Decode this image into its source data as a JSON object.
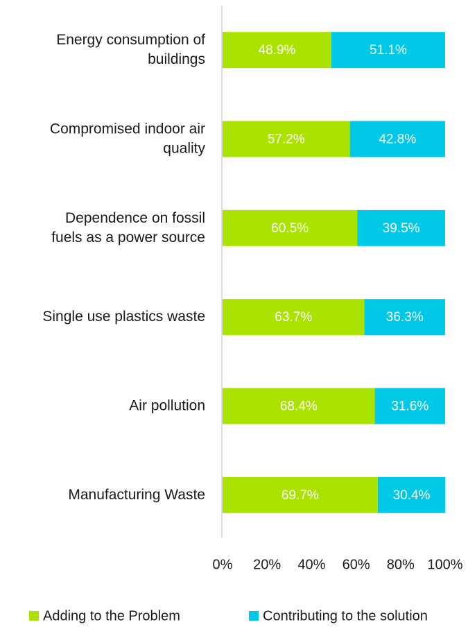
{
  "chart_data": {
    "type": "stacked_barh",
    "categories": [
      "Energy consumption of\nbuildings",
      "Compromised indoor air\nquality",
      "Dependence on fossil\nfuels as a power source",
      "Single use plastics waste",
      "Air pollution",
      "Manufacturing Waste"
    ],
    "series": [
      {
        "name": "Adding to the Problem",
        "color": "#abe300",
        "values": [
          48.9,
          57.2,
          60.5,
          63.7,
          68.4,
          69.7
        ],
        "value_labels": [
          "48.9%",
          "57.2%",
          "60.5%",
          "63.7%",
          "68.4%",
          "69.7%"
        ]
      },
      {
        "name": "Contributing to the solution",
        "color": "#00c9e8",
        "values": [
          51.1,
          42.8,
          39.5,
          36.3,
          31.6,
          30.4
        ],
        "value_labels": [
          "51.1%",
          "42.8%",
          "39.5%",
          "36.3%",
          "31.6%",
          "30.4%"
        ]
      }
    ],
    "xlim": [
      0,
      100
    ],
    "xticks": [
      {
        "value": 0,
        "label": "0%"
      },
      {
        "value": 20,
        "label": "20%"
      },
      {
        "value": 40,
        "label": "40%"
      },
      {
        "value": 60,
        "label": "60%"
      },
      {
        "value": 80,
        "label": "80%"
      },
      {
        "value": 100,
        "label": "100%"
      }
    ],
    "legend": "bottom"
  }
}
